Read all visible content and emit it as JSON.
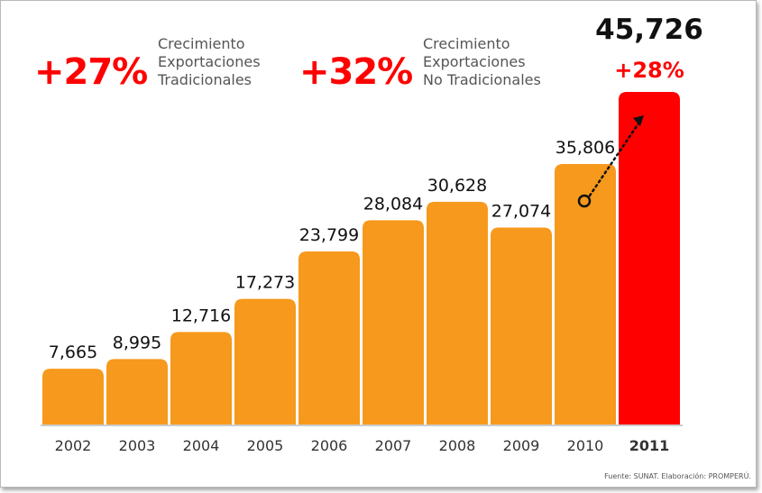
{
  "callouts": [
    {
      "value": "+27%",
      "label": "Crecimiento\nExportaciones\nTradicionales"
    },
    {
      "value": "+32%",
      "label": "Crecimiento\nExportaciones\nNo Tradicionales"
    }
  ],
  "source": "Fuente: SUNAT. Elaboración: PROMPERÚ.",
  "colors": {
    "bar": "#f7991c",
    "highlight": "#ff0000",
    "text": "#111111",
    "axis": "#333333"
  },
  "chart_data": {
    "type": "bar",
    "categories": [
      "2002",
      "2003",
      "2004",
      "2005",
      "2006",
      "2007",
      "2008",
      "2009",
      "2010",
      "2011"
    ],
    "values": [
      7665,
      8995,
      12716,
      17273,
      23799,
      28084,
      30628,
      27074,
      35806,
      45726
    ],
    "labels": [
      "7,665",
      "8,995",
      "12,716",
      "17,273",
      "23,799",
      "28,084",
      "30,628",
      "27,074",
      "35,806",
      "45,726"
    ],
    "highlight_index": 9,
    "highlight_growth": "+28%",
    "title": "",
    "xlabel": "",
    "ylabel": "",
    "grid": false
  }
}
